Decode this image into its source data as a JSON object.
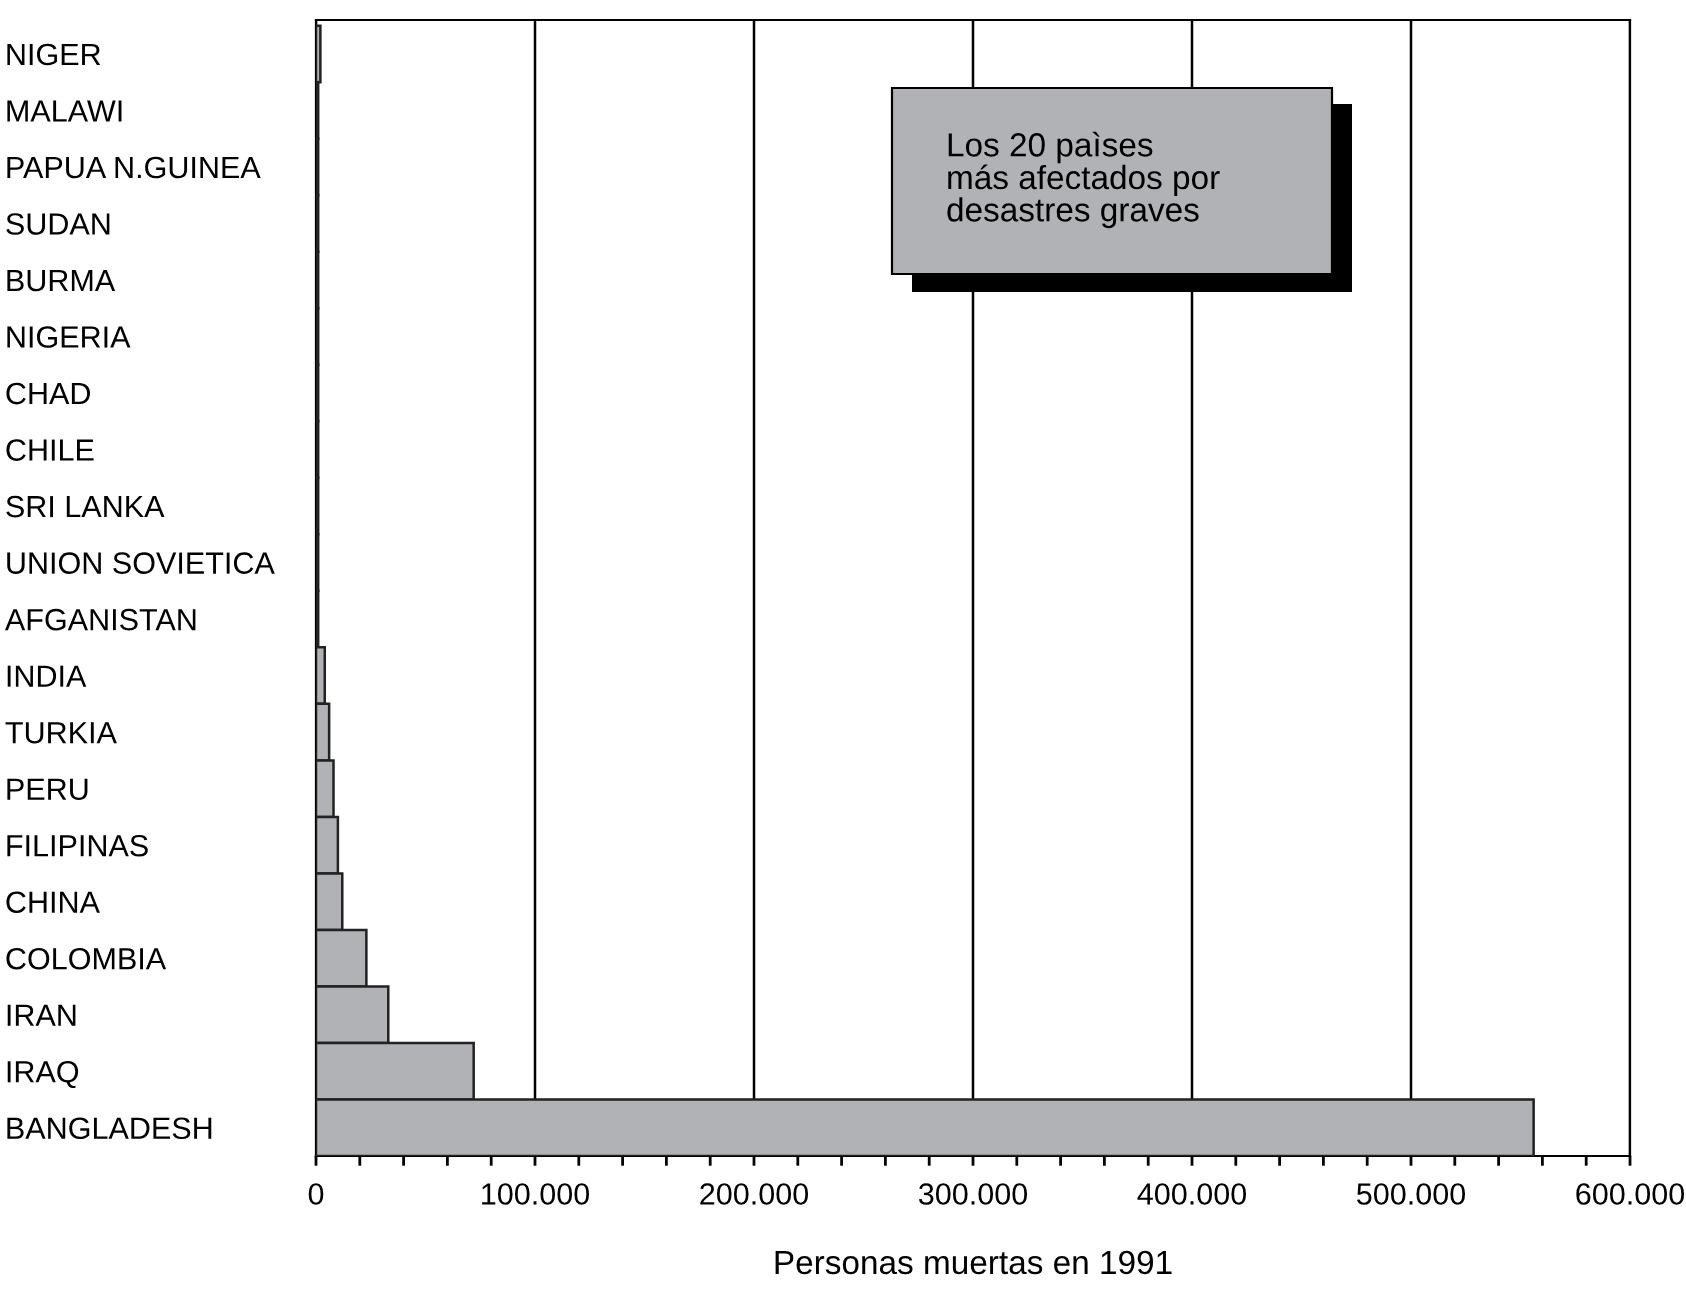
{
  "chart_data": {
    "type": "bar",
    "orientation": "horizontal",
    "xlabel": "Personas muertas en 1991",
    "categories": [
      "NIGER",
      "MALAWI",
      "PAPUA N.GUINEA",
      "SUDAN",
      "BURMA",
      "NIGERIA",
      "CHAD",
      "CHILE",
      "SRI LANKA",
      "UNION SOVIETICA",
      "AFGANISTAN",
      "INDIA",
      "TURKIA",
      "PERU",
      "FILIPINAS",
      "CHINA",
      "COLOMBIA",
      "IRAN",
      "IRAQ",
      "BANGLADESH"
    ],
    "values": [
      2000,
      1000,
      1000,
      1000,
      1000,
      1000,
      1000,
      1000,
      1000,
      1000,
      1000,
      4000,
      6000,
      8000,
      10000,
      12000,
      23000,
      33000,
      72000,
      556000
    ],
    "colors": [
      "#b1b2b6",
      "#555555",
      "#d0102a",
      "#5a5540",
      "#4a3040",
      "#5a5540",
      "#3a3a50",
      "#2a4a48",
      "#4a2a38",
      "#5a5540",
      "#4a2a38",
      "#b1b2b6",
      "#b1b2b6",
      "#b1b2b6",
      "#b1b2b6",
      "#b1b2b6",
      "#b1b2b6",
      "#b1b2b6",
      "#b1b2b6",
      "#b1b2b6"
    ],
    "xlim": [
      0,
      600000
    ],
    "xticks": [
      0,
      {
        "value": 20000,
        "label": null
      },
      {
        "value": 40000,
        "label": null
      },
      {
        "value": 60000,
        "label": null
      },
      {
        "value": 80000,
        "label": null
      },
      {
        "value": 100000,
        "label": "100.000"
      },
      {
        "value": 120000,
        "label": null
      },
      {
        "value": 140000,
        "label": null
      },
      {
        "value": 160000,
        "label": null
      },
      {
        "value": 180000,
        "label": null
      },
      {
        "value": 200000,
        "label": "200.000"
      },
      {
        "value": 220000,
        "label": null
      },
      {
        "value": 240000,
        "label": null
      },
      {
        "value": 260000,
        "label": null
      },
      {
        "value": 280000,
        "label": null
      },
      {
        "value": 300000,
        "label": "300.000"
      },
      {
        "value": 320000,
        "label": null
      },
      {
        "value": 340000,
        "label": null
      },
      {
        "value": 360000,
        "label": null
      },
      {
        "value": 380000,
        "label": null
      },
      {
        "value": 400000,
        "label": "400.000"
      },
      {
        "value": 420000,
        "label": null
      },
      {
        "value": 440000,
        "label": null
      },
      {
        "value": 460000,
        "label": null
      },
      {
        "value": 480000,
        "label": null
      },
      {
        "value": 500000,
        "label": "500.000"
      },
      {
        "value": 520000,
        "label": null
      },
      {
        "value": 540000,
        "label": null
      },
      {
        "value": 560000,
        "label": null
      },
      {
        "value": 580000,
        "label": null
      },
      {
        "value": 600000,
        "label": "600.000"
      }
    ],
    "grid": "x",
    "annotations": [
      "Los 20 paìses\nmás afectados por\ndesastres graves"
    ]
  }
}
